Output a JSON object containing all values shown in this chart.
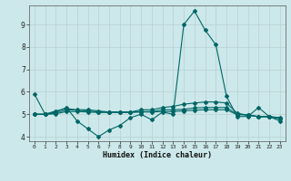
{
  "xlabel": "Humidex (Indice chaleur)",
  "bg_color": "#cce8ea",
  "grid_color": "#b8d0d2",
  "line_color": "#006666",
  "xlim": [
    -0.5,
    23.5
  ],
  "ylim": [
    3.8,
    9.85
  ],
  "yticks": [
    4,
    5,
    6,
    7,
    8,
    9
  ],
  "xticks": [
    0,
    1,
    2,
    3,
    4,
    5,
    6,
    7,
    8,
    9,
    10,
    11,
    12,
    13,
    14,
    15,
    16,
    17,
    18,
    19,
    20,
    21,
    22,
    23
  ],
  "series1_x": [
    0,
    1,
    2,
    3,
    4,
    5,
    6,
    7,
    8,
    9,
    10,
    11,
    12,
    13,
    14,
    15,
    16,
    17,
    18,
    19,
    20,
    21,
    22,
    23
  ],
  "series1_y": [
    5.9,
    5.0,
    5.1,
    5.3,
    4.7,
    4.35,
    4.0,
    4.3,
    4.5,
    4.85,
    5.0,
    4.75,
    5.1,
    5.0,
    9.0,
    9.6,
    8.75,
    8.1,
    5.8,
    4.9,
    4.9,
    5.3,
    4.9,
    4.7
  ],
  "series2_x": [
    0,
    1,
    2,
    3,
    4,
    5,
    6,
    7,
    8,
    9,
    10,
    11,
    12,
    13,
    14,
    15,
    16,
    17,
    18,
    19,
    20,
    21,
    22,
    23
  ],
  "series2_y": [
    5.0,
    5.0,
    5.15,
    5.25,
    5.2,
    5.2,
    5.15,
    5.1,
    5.1,
    5.1,
    5.2,
    5.2,
    5.3,
    5.35,
    5.45,
    5.5,
    5.55,
    5.55,
    5.5,
    5.05,
    4.95,
    4.9,
    4.9,
    4.85
  ],
  "series3_x": [
    0,
    1,
    2,
    3,
    4,
    5,
    6,
    7,
    8,
    9,
    10,
    11,
    12,
    13,
    14,
    15,
    16,
    17,
    18,
    19,
    20,
    21,
    22,
    23
  ],
  "series3_y": [
    5.0,
    5.0,
    5.05,
    5.2,
    5.18,
    5.15,
    5.1,
    5.1,
    5.1,
    5.1,
    5.12,
    5.12,
    5.2,
    5.2,
    5.22,
    5.28,
    5.3,
    5.3,
    5.3,
    5.0,
    4.98,
    4.9,
    4.9,
    4.82
  ],
  "series4_x": [
    0,
    1,
    2,
    3,
    4,
    5,
    6,
    7,
    8,
    9,
    10,
    11,
    12,
    13,
    14,
    15,
    16,
    17,
    18,
    19,
    20,
    21,
    22,
    23
  ],
  "series4_y": [
    5.0,
    5.0,
    5.02,
    5.12,
    5.12,
    5.1,
    5.08,
    5.08,
    5.08,
    5.08,
    5.1,
    5.1,
    5.12,
    5.12,
    5.15,
    5.18,
    5.2,
    5.2,
    5.2,
    4.98,
    4.97,
    4.88,
    4.88,
    4.8
  ]
}
